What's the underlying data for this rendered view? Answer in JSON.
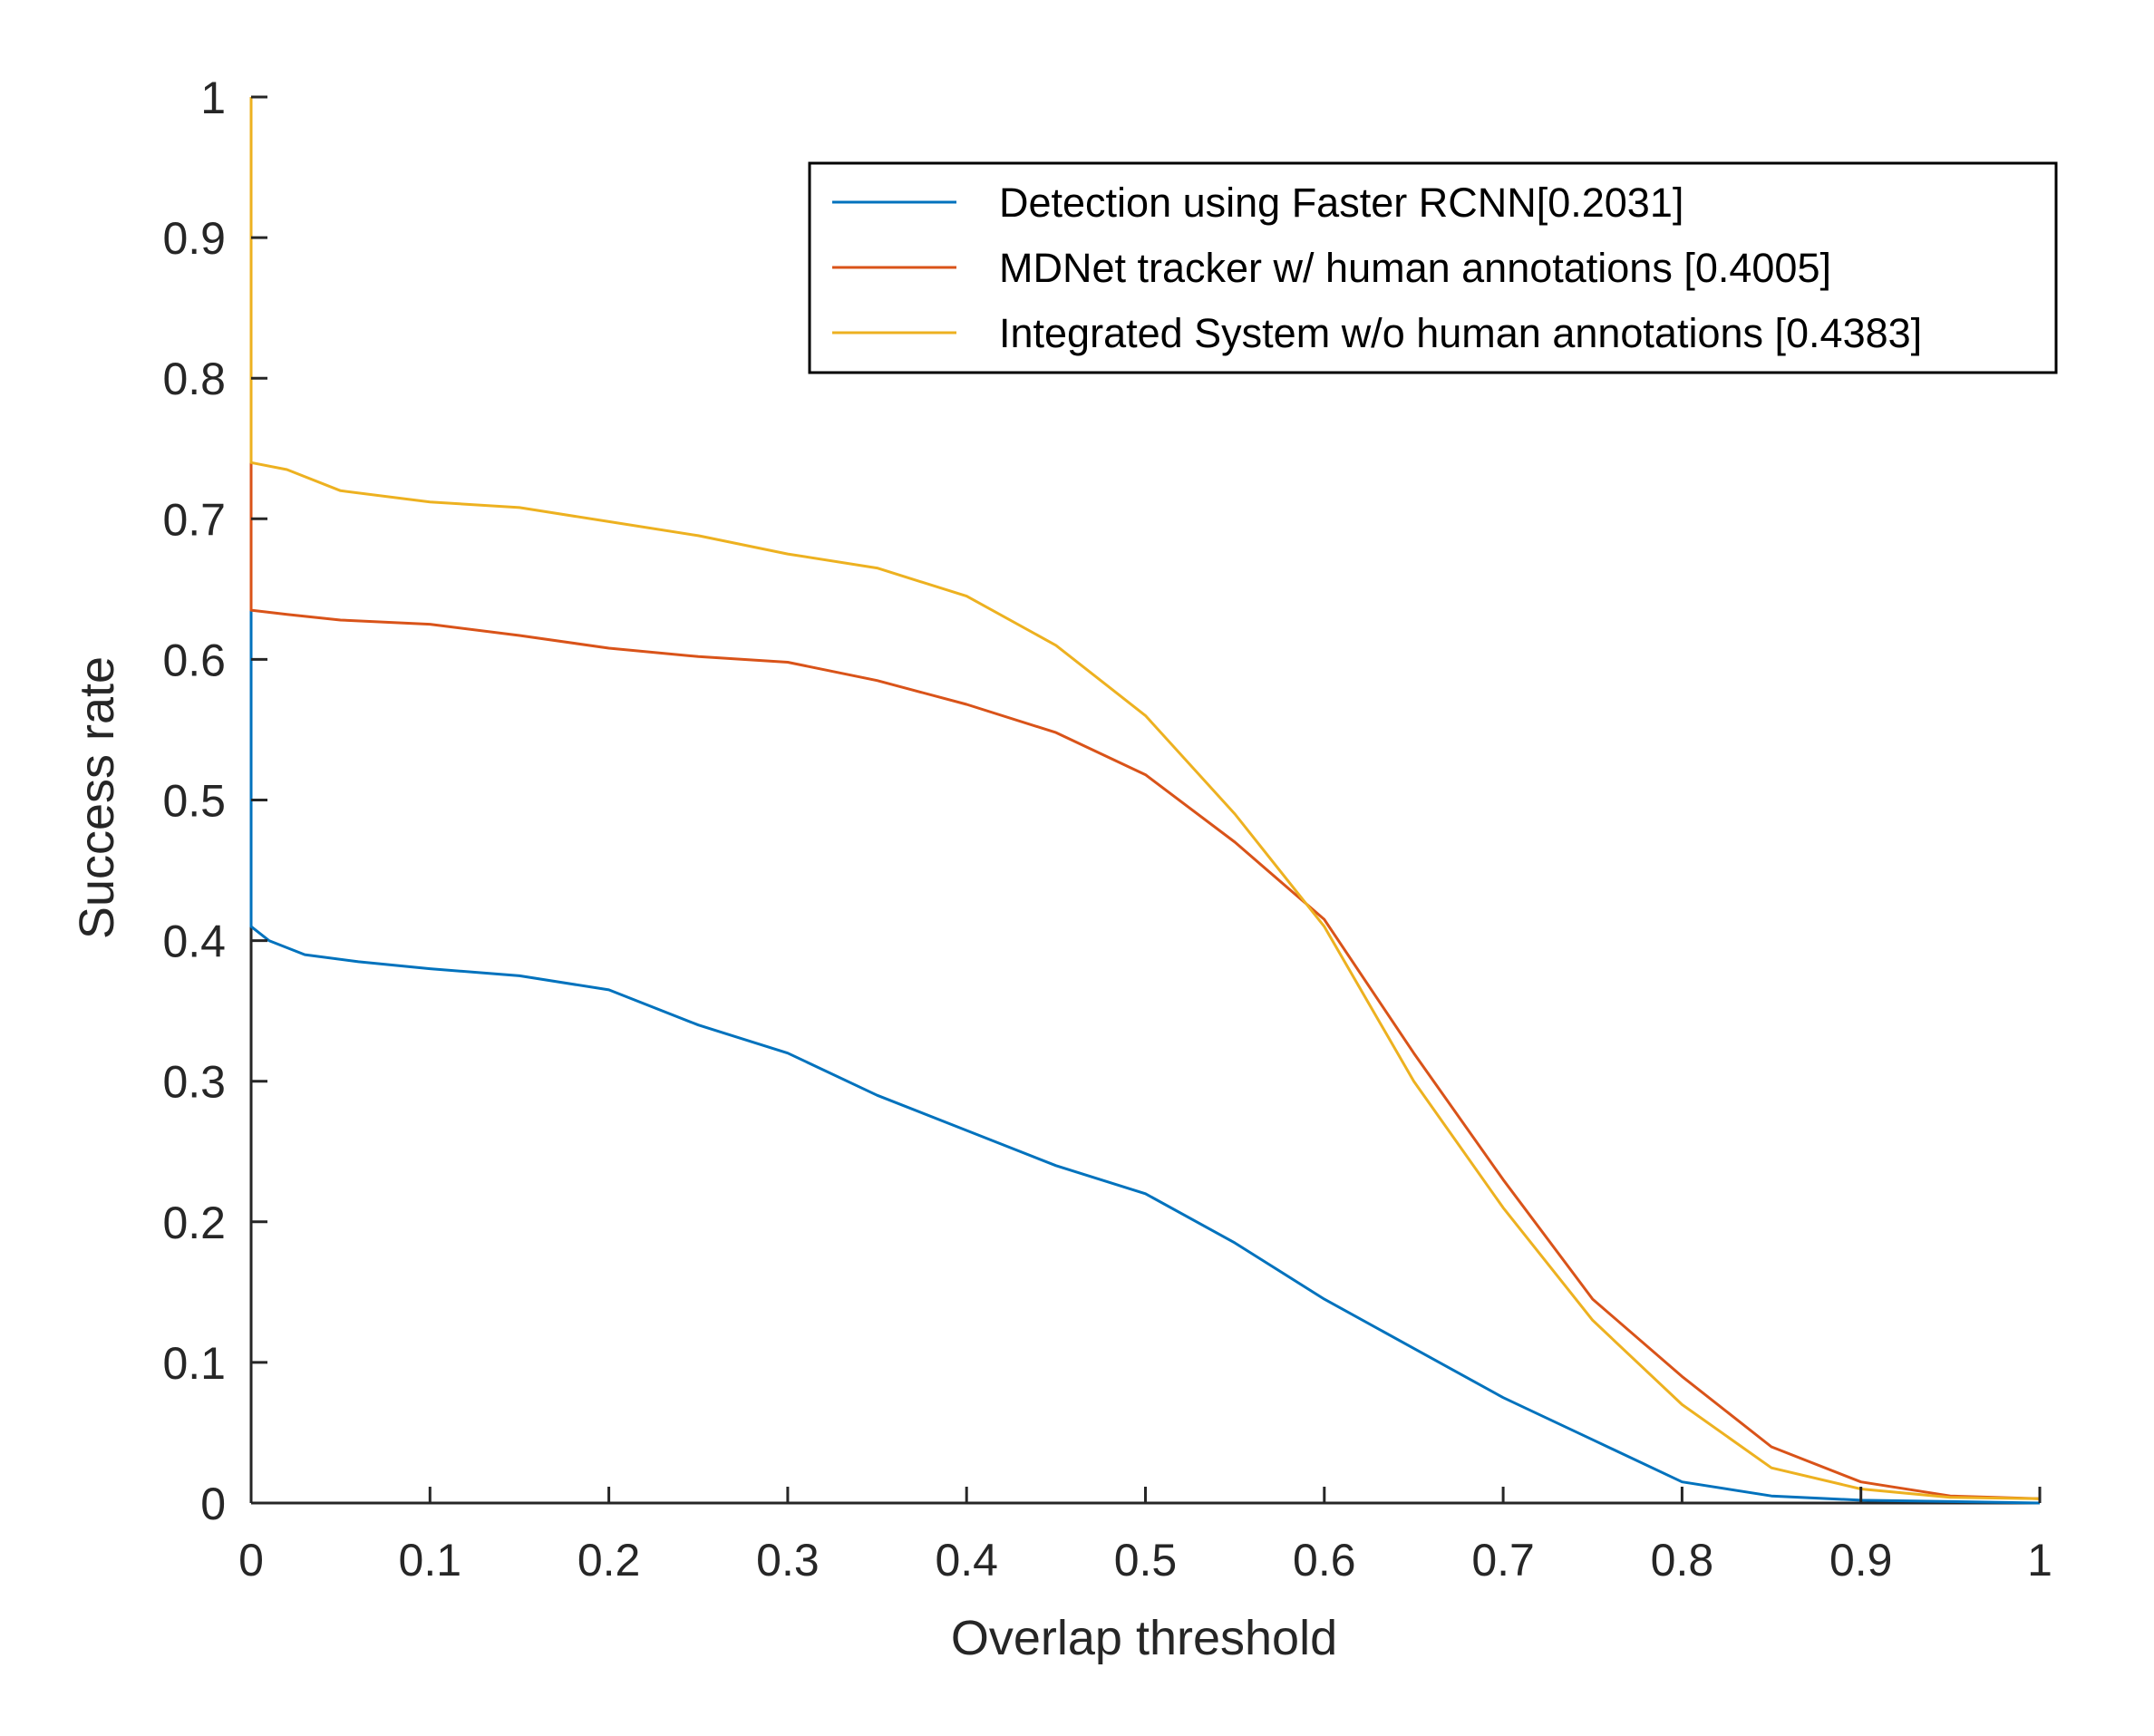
{
  "chart_data": {
    "type": "line",
    "title": "",
    "xlabel": "Overlap threshold",
    "ylabel": "Success rate",
    "xlim": [
      0,
      1
    ],
    "ylim": [
      0,
      1
    ],
    "xticks": [
      "0",
      "0.1",
      "0.2",
      "0.3",
      "0.4",
      "0.5",
      "0.6",
      "0.7",
      "0.8",
      "0.9",
      "1"
    ],
    "yticks": [
      "0",
      "0.1",
      "0.2",
      "0.3",
      "0.4",
      "0.5",
      "0.6",
      "0.7",
      "0.8",
      "0.9",
      "1"
    ],
    "grid": false,
    "legend_position": "top-right",
    "series": [
      {
        "name": "Detection using Faster RCNN[0.2031]",
        "color": "#0072BD",
        "x": [
          0,
          0,
          0.01,
          0.03,
          0.06,
          0.1,
          0.15,
          0.2,
          0.25,
          0.3,
          0.35,
          0.4,
          0.45,
          0.5,
          0.55,
          0.6,
          0.65,
          0.7,
          0.75,
          0.8,
          0.85,
          0.9,
          0.95,
          1
        ],
        "y": [
          1,
          0.41,
          0.4,
          0.39,
          0.385,
          0.38,
          0.375,
          0.365,
          0.34,
          0.32,
          0.29,
          0.265,
          0.24,
          0.22,
          0.185,
          0.145,
          0.11,
          0.075,
          0.045,
          0.015,
          0.005,
          0.002,
          0.001,
          0
        ]
      },
      {
        "name": "MDNet tracker w/ human annotations [0.4005]",
        "color": "#D95319",
        "x": [
          0,
          0,
          0.02,
          0.05,
          0.1,
          0.15,
          0.2,
          0.25,
          0.3,
          0.35,
          0.4,
          0.45,
          0.5,
          0.55,
          0.6,
          0.65,
          0.7,
          0.75,
          0.8,
          0.85,
          0.9,
          0.95,
          1
        ],
        "y": [
          1,
          0.635,
          0.632,
          0.628,
          0.625,
          0.617,
          0.608,
          0.602,
          0.598,
          0.585,
          0.568,
          0.548,
          0.518,
          0.47,
          0.415,
          0.32,
          0.23,
          0.145,
          0.09,
          0.04,
          0.015,
          0.005,
          0.003
        ]
      },
      {
        "name": "Integrated System w/o human annotations [0.4383]",
        "color": "#EDB120",
        "x": [
          0,
          0,
          0.02,
          0.05,
          0.1,
          0.15,
          0.2,
          0.25,
          0.3,
          0.35,
          0.4,
          0.45,
          0.5,
          0.55,
          0.6,
          0.65,
          0.7,
          0.75,
          0.8,
          0.85,
          0.9,
          0.95,
          1
        ],
        "y": [
          1,
          0.74,
          0.735,
          0.72,
          0.712,
          0.708,
          0.698,
          0.688,
          0.675,
          0.665,
          0.645,
          0.61,
          0.56,
          0.49,
          0.41,
          0.3,
          0.21,
          0.13,
          0.07,
          0.025,
          0.01,
          0.004,
          0.003
        ]
      }
    ]
  }
}
